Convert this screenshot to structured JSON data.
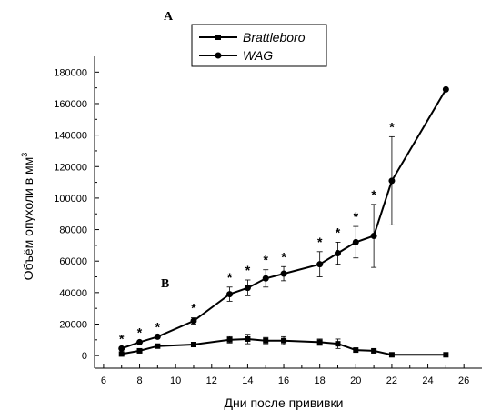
{
  "chart_data": {
    "type": "line",
    "panel_labels": [
      "A",
      "B"
    ],
    "xlabel": "Дни после прививки",
    "ylabel": "Объём опухоли в мм",
    "ylabel_superscript": "3",
    "xlim": [
      5.5,
      27
    ],
    "ylim": [
      -8000,
      190000
    ],
    "x_ticks": [
      6,
      8,
      10,
      12,
      14,
      16,
      18,
      20,
      22,
      24,
      26
    ],
    "y_ticks": [
      0,
      20000,
      40000,
      60000,
      80000,
      100000,
      120000,
      140000,
      160000,
      180000
    ],
    "legend_position": "top",
    "series": [
      {
        "name": "Brattleboro",
        "marker": "square",
        "x": [
          7,
          8,
          9,
          11,
          13,
          14,
          15,
          16,
          18,
          19,
          20,
          21,
          22,
          25
        ],
        "y": [
          1000,
          3000,
          6000,
          7000,
          10000,
          10500,
          9500,
          9500,
          8500,
          7500,
          3500,
          3000,
          500,
          500
        ],
        "err": [
          0,
          0,
          0,
          1500,
          2000,
          3000,
          2000,
          2500,
          2000,
          3000,
          0,
          0,
          0,
          0
        ]
      },
      {
        "name": "WAG",
        "marker": "circle",
        "x": [
          7,
          8,
          9,
          11,
          13,
          14,
          15,
          16,
          18,
          19,
          20,
          21,
          22,
          25
        ],
        "y": [
          4500,
          8500,
          12000,
          22000,
          39000,
          43000,
          49000,
          52000,
          58000,
          65000,
          72000,
          76000,
          111000,
          169000
        ],
        "err": [
          0,
          0,
          0,
          2000,
          4500,
          5000,
          5500,
          4500,
          8000,
          7000,
          10000,
          20000,
          28000,
          0
        ],
        "significant": [
          true,
          true,
          true,
          true,
          true,
          true,
          true,
          true,
          true,
          true,
          true,
          true,
          true,
          false
        ]
      }
    ],
    "significance_marker": "*"
  }
}
